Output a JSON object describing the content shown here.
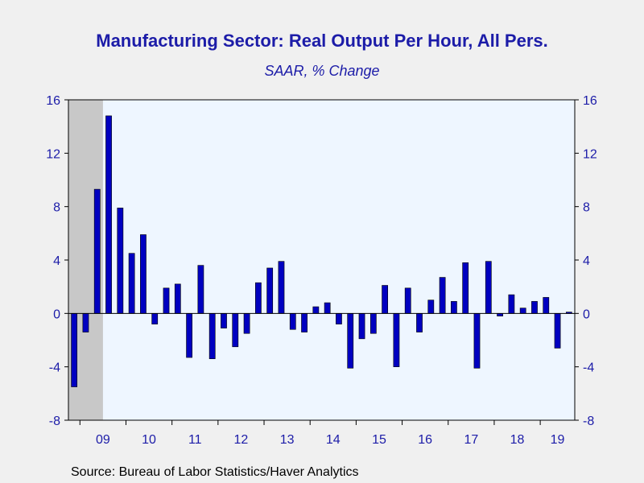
{
  "colors": {
    "bar": "#0000c0",
    "plot_bg": "#eef6ff",
    "recession": "#c8c8c8",
    "text": "#1c1ca8",
    "page_bg": "#f0f0f0"
  },
  "source": "Source:  Bureau of Labor Statistics/Haver Analytics",
  "chart_data": {
    "type": "bar",
    "title": "Manufacturing Sector: Real Output Per Hour, All Pers.",
    "subtitle": "SAAR, % Change",
    "frequency": "quarterly",
    "start_period": "2008Q4",
    "ylim": [
      -8,
      16
    ],
    "yticks": [
      -8,
      -4,
      0,
      4,
      8,
      12,
      16
    ],
    "year_labels": [
      "09",
      "10",
      "11",
      "12",
      "13",
      "14",
      "15",
      "16",
      "17",
      "18",
      "19"
    ],
    "recession_shading": {
      "from": "2008Q4",
      "to": "2009Q2"
    },
    "grid": false,
    "legend": "none",
    "axis_left_and_right": true,
    "series": [
      {
        "values": [
          -5.5,
          -1.4,
          9.3,
          14.8,
          7.9,
          4.5,
          5.9,
          -0.8,
          1.9,
          2.2,
          -3.3,
          3.6,
          -3.4,
          -1.1,
          -2.5,
          -1.5,
          2.3,
          3.4,
          3.9,
          -1.2,
          -1.4,
          0.5,
          0.8,
          -0.8,
          -4.1,
          -1.9,
          -1.5,
          2.1,
          -4.0,
          1.9,
          -1.4,
          1.0,
          2.7,
          0.9,
          3.8,
          -4.1,
          3.9,
          -0.2,
          1.4,
          0.4,
          0.9,
          1.2,
          -2.6,
          0.1
        ]
      }
    ]
  }
}
